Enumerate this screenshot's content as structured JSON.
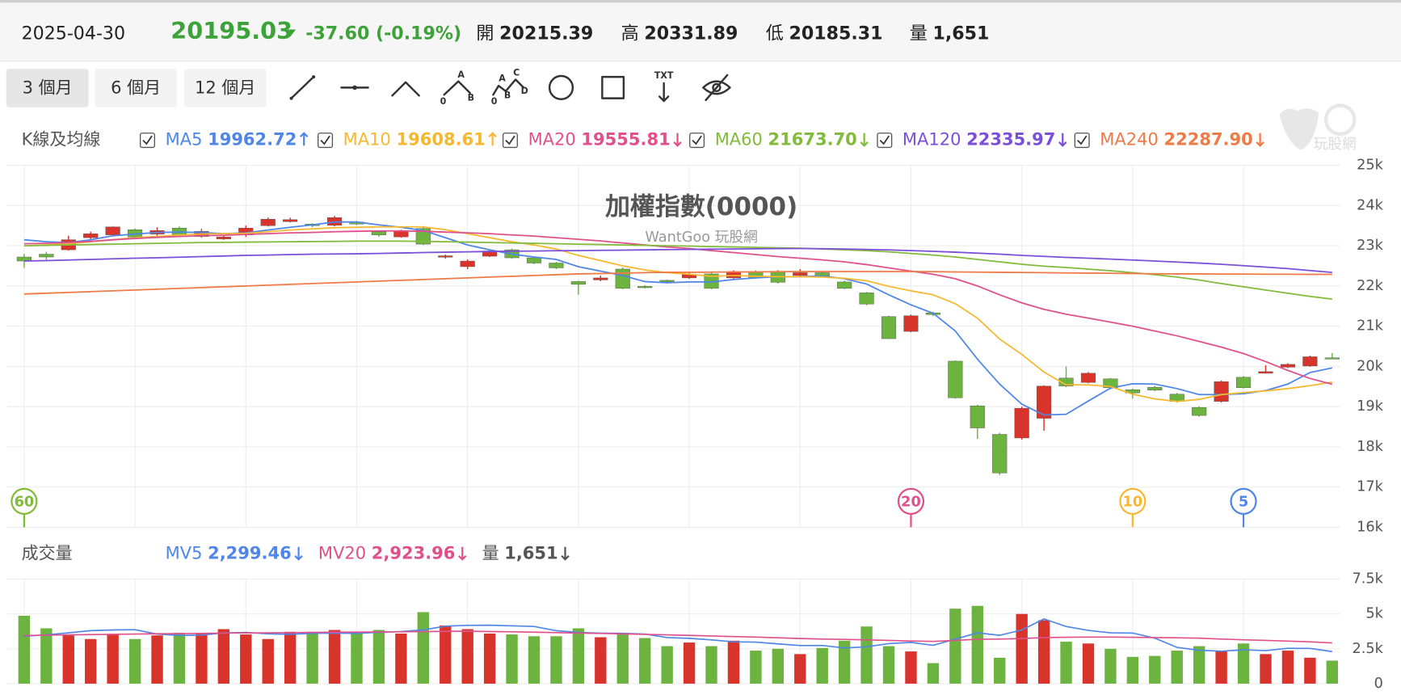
{
  "header": {
    "date": "2025-04-30",
    "price": "20195.03",
    "change": "-37.60 (-0.19%)",
    "color": "#3ea23a",
    "stats": [
      {
        "label": "開",
        "value": "20215.39"
      },
      {
        "label": "高",
        "value": "20331.89"
      },
      {
        "label": "低",
        "value": "20185.31"
      },
      {
        "label": "量",
        "value": "1,651"
      }
    ]
  },
  "toolbar": {
    "ranges": [
      "3 個月",
      "6 個月",
      "12 個月"
    ],
    "active": 0,
    "tool_texts": [
      "A",
      "0",
      "B",
      "A",
      "C",
      "0",
      "B",
      "D",
      "TXT"
    ]
  },
  "logo": "玩股網",
  "chart_data": [
    {
      "type": "candlestick",
      "title": "加權指數(0000)",
      "subtitle": "WantGoo 玩股網",
      "panel_label": "K線及均線",
      "up_color": "#d9342b",
      "down_color": "#6db33f",
      "open": [
        22720,
        22790,
        22900,
        23200,
        23270,
        23400,
        23290,
        23440,
        23230,
        23170,
        23270,
        23500,
        23600,
        23540,
        23510,
        23590,
        23350,
        23220,
        23430,
        22720,
        22480,
        22740,
        22900,
        22700,
        22570,
        22110,
        22150,
        22420,
        21990,
        22140,
        22200,
        22300,
        22200,
        22360,
        22360,
        22260,
        22330,
        22100,
        21830,
        21240,
        20870,
        21330,
        20130,
        19020,
        18310,
        18220,
        18710,
        19710,
        19600,
        19690,
        19420,
        19480,
        19310,
        18980,
        19130,
        19730,
        19830,
        19980,
        20010,
        20215.39
      ],
      "high": [
        22800,
        22850,
        23250,
        23350,
        23480,
        23430,
        23460,
        23480,
        23420,
        23260,
        23500,
        23700,
        23700,
        23560,
        23740,
        23620,
        23380,
        23400,
        23480,
        22780,
        22660,
        22900,
        22930,
        22720,
        22600,
        22130,
        22260,
        22460,
        22020,
        22160,
        22330,
        22330,
        22390,
        22390,
        22400,
        22420,
        22380,
        22130,
        21850,
        21260,
        21290,
        21360,
        20150,
        19050,
        18350,
        19000,
        19530,
        20000,
        19860,
        19710,
        19450,
        19520,
        19340,
        19010,
        19650,
        19760,
        20030,
        20080,
        20270,
        20331.89
      ],
      "low": [
        22450,
        22650,
        22880,
        23150,
        23250,
        23180,
        23250,
        23240,
        23200,
        23150,
        23220,
        23480,
        23580,
        23460,
        23480,
        23510,
        23220,
        23200,
        23020,
        22680,
        22420,
        22720,
        22680,
        22540,
        22420,
        21780,
        22120,
        21920,
        21940,
        22080,
        22180,
        21920,
        22180,
        22180,
        22060,
        22240,
        22230,
        21920,
        21520,
        20680,
        20850,
        21250,
        19200,
        18200,
        17300,
        18180,
        18400,
        19480,
        19580,
        19430,
        19200,
        19380,
        19100,
        18750,
        19100,
        19450,
        19820,
        19960,
        19990,
        20185.31
      ],
      "close": [
        22620,
        22720,
        23150,
        23300,
        23470,
        23220,
        23380,
        23270,
        23360,
        23220,
        23440,
        23660,
        23650,
        23500,
        23700,
        23540,
        23270,
        23370,
        23040,
        22750,
        22620,
        22870,
        22700,
        22570,
        22450,
        22040,
        22200,
        21940,
        21970,
        22100,
        22290,
        21940,
        22360,
        22200,
        22090,
        22330,
        22250,
        21940,
        21550,
        20690,
        21260,
        21290,
        19220,
        18470,
        17350,
        18960,
        19510,
        19510,
        19830,
        19470,
        19340,
        19410,
        19130,
        18780,
        19620,
        19470,
        19870,
        20050,
        20240,
        20195.03
      ],
      "series": [
        {
          "name": "MA5",
          "period": 5,
          "color": "#4f86e8",
          "latest": "19962.72",
          "trend": "up",
          "values": [
            23150,
            23100,
            23080,
            23150,
            23250,
            23290,
            23330,
            23340,
            23330,
            23300,
            23320,
            23390,
            23460,
            23520,
            23590,
            23590,
            23520,
            23460,
            23380,
            23200,
            23020,
            22900,
            22790,
            22720,
            22660,
            22480,
            22370,
            22260,
            22110,
            22080,
            22100,
            22100,
            22160,
            22200,
            22230,
            22230,
            22250,
            22180,
            22050,
            21780,
            21530,
            21320,
            20880,
            20180,
            19560,
            19060,
            18790,
            18810,
            19140,
            19460,
            19570,
            19560,
            19450,
            19300,
            19300,
            19320,
            19400,
            19560,
            19850,
            19962.72
          ]
        },
        {
          "name": "MA10",
          "period": 10,
          "color": "#f5b82e",
          "latest": "19608.61",
          "trend": "up",
          "values": [
            23000,
            23020,
            23050,
            23100,
            23150,
            23200,
            23230,
            23270,
            23290,
            23300,
            23310,
            23350,
            23390,
            23420,
            23450,
            23460,
            23470,
            23470,
            23470,
            23400,
            23300,
            23200,
            23100,
            23020,
            22920,
            22760,
            22630,
            22500,
            22400,
            22330,
            22290,
            22240,
            22260,
            22240,
            22230,
            22230,
            22220,
            22190,
            22130,
            21990,
            21880,
            21780,
            21560,
            21200,
            20680,
            20300,
            19860,
            19540,
            19540,
            19500,
            19310,
            19190,
            19130,
            19180,
            19300,
            19350,
            19390,
            19450,
            19520,
            19608.61
          ]
        },
        {
          "name": "MA20",
          "period": 20,
          "color": "#e0508a",
          "latest": "19555.81",
          "trend": "down",
          "values": [
            23050,
            23060,
            23080,
            23110,
            23150,
            23180,
            23210,
            23230,
            23250,
            23260,
            23280,
            23300,
            23320,
            23330,
            23350,
            23360,
            23370,
            23370,
            23360,
            23340,
            23320,
            23300,
            23270,
            23240,
            23200,
            23160,
            23120,
            23070,
            23020,
            22970,
            22930,
            22880,
            22830,
            22780,
            22730,
            22690,
            22650,
            22600,
            22530,
            22450,
            22370,
            22290,
            22180,
            22000,
            21780,
            21580,
            21420,
            21300,
            21200,
            21100,
            21000,
            20880,
            20760,
            20620,
            20480,
            20320,
            20120,
            19900,
            19700,
            19555.81
          ]
        },
        {
          "name": "MA60",
          "period": 60,
          "color": "#82bb3a",
          "latest": "21673.70",
          "trend": "down",
          "values": [
            23000,
            23010,
            23020,
            23030,
            23040,
            23050,
            23060,
            23070,
            23080,
            23085,
            23090,
            23095,
            23100,
            23105,
            23110,
            23115,
            23115,
            23115,
            23110,
            23100,
            23090,
            23080,
            23070,
            23060,
            23050,
            23040,
            23030,
            23020,
            23010,
            23000,
            22990,
            22980,
            22970,
            22960,
            22950,
            22940,
            22920,
            22900,
            22880,
            22850,
            22810,
            22770,
            22720,
            22660,
            22600,
            22540,
            22490,
            22460,
            22420,
            22380,
            22330,
            22280,
            22220,
            22150,
            22060,
            21980,
            21900,
            21820,
            21740,
            21673.7
          ]
        },
        {
          "name": "MA120",
          "period": 120,
          "color": "#7b4fd9",
          "latest": "22335.97",
          "trend": "down",
          "values": [
            22620,
            22630,
            22645,
            22660,
            22675,
            22690,
            22700,
            22715,
            22730,
            22745,
            22760,
            22770,
            22780,
            22790,
            22795,
            22800,
            22810,
            22820,
            22830,
            22840,
            22850,
            22857,
            22864,
            22870,
            22875,
            22880,
            22886,
            22892,
            22898,
            22904,
            22910,
            22915,
            22920,
            22924,
            22928,
            22930,
            22926,
            22920,
            22910,
            22896,
            22880,
            22862,
            22840,
            22815,
            22790,
            22760,
            22735,
            22710,
            22690,
            22670,
            22645,
            22620,
            22595,
            22570,
            22540,
            22505,
            22470,
            22430,
            22385,
            22335.97
          ]
        },
        {
          "name": "MA240",
          "period": 240,
          "color": "#f07a45",
          "latest": "22287.90",
          "trend": "down",
          "values": [
            21800,
            21820,
            21840,
            21860,
            21880,
            21900,
            21920,
            21940,
            21960,
            21980,
            22000,
            22020,
            22040,
            22060,
            22080,
            22100,
            22120,
            22140,
            22160,
            22180,
            22200,
            22220,
            22240,
            22260,
            22280,
            22300,
            22310,
            22320,
            22330,
            22340,
            22340,
            22345,
            22350,
            22350,
            22355,
            22355,
            22360,
            22360,
            22360,
            22360,
            22360,
            22355,
            22350,
            22345,
            22340,
            22335,
            22330,
            22325,
            22320,
            22315,
            22310,
            22305,
            22300,
            22300,
            22295,
            22295,
            22290,
            22290,
            22288,
            22287.9
          ]
        }
      ],
      "ylim": [
        16000,
        25000
      ],
      "yticks": [
        {
          "value": 25000,
          "label": "25k"
        },
        {
          "value": 24000,
          "label": "24k"
        },
        {
          "value": 23000,
          "label": "23k"
        },
        {
          "value": 22000,
          "label": "22k"
        },
        {
          "value": 21000,
          "label": "21k"
        },
        {
          "value": 20000,
          "label": "20k"
        },
        {
          "value": 19000,
          "label": "19k"
        },
        {
          "value": 18000,
          "label": "18k"
        },
        {
          "value": 17000,
          "label": "17k"
        },
        {
          "value": 16000,
          "label": "16k"
        }
      ],
      "grid": true
    },
    {
      "type": "bar",
      "panel_label": "成交量",
      "volume_trend": "down",
      "values": [
        4870,
        3970,
        3460,
        3200,
        3530,
        3200,
        3460,
        3650,
        3650,
        3910,
        3530,
        3200,
        3720,
        3720,
        3850,
        3590,
        3850,
        3590,
        5130,
        4170,
        3910,
        3590,
        3530,
        3400,
        3400,
        3970,
        3330,
        3590,
        3270,
        2690,
        2950,
        2690,
        3080,
        2370,
        2500,
        2120,
        2560,
        3080,
        4100,
        2690,
        2310,
        1470,
        5380,
        5580,
        1860,
        5000,
        4550,
        3010,
        2880,
        2500,
        1920,
        1990,
        2370,
        2690,
        2370,
        2880,
        2120,
        2370,
        1860,
        1651
      ],
      "series": [
        {
          "name": "MV5",
          "color": "#4f86e8",
          "latest": "2,299.46",
          "trend": "down",
          "values": [
            3400,
            3500,
            3650,
            3800,
            3850,
            3870,
            3550,
            3460,
            3480,
            3640,
            3670,
            3580,
            3540,
            3610,
            3630,
            3600,
            3680,
            3740,
            3850,
            4120,
            4180,
            4190,
            4150,
            4100,
            3800,
            3670,
            3620,
            3610,
            3560,
            3310,
            3250,
            3140,
            3000,
            2980,
            2850,
            2730,
            2740,
            2560,
            2650,
            2870,
            2960,
            2750,
            3200,
            3640,
            3470,
            3850,
            4640,
            4100,
            3820,
            3650,
            3630,
            3260,
            2600,
            2400,
            2330,
            2430,
            2370,
            2540,
            2530,
            2299.46
          ]
        },
        {
          "name": "MV20",
          "color": "#e0508a",
          "latest": "2,923.96",
          "trend": "down",
          "values": [
            3450,
            3480,
            3500,
            3520,
            3540,
            3560,
            3580,
            3590,
            3600,
            3620,
            3640,
            3650,
            3660,
            3670,
            3690,
            3700,
            3710,
            3720,
            3730,
            3750,
            3760,
            3740,
            3720,
            3690,
            3660,
            3630,
            3600,
            3570,
            3540,
            3500,
            3460,
            3420,
            3380,
            3340,
            3290,
            3240,
            3200,
            3170,
            3140,
            3100,
            3060,
            3030,
            3100,
            3180,
            3200,
            3240,
            3300,
            3330,
            3340,
            3340,
            3330,
            3310,
            3290,
            3260,
            3200,
            3150,
            3100,
            3050,
            3000,
            2923.96
          ]
        }
      ],
      "ylim": [
        0,
        7500
      ],
      "yticks": [
        {
          "value": 7500,
          "label": "7.5k"
        },
        {
          "value": 5000,
          "label": "5k"
        },
        {
          "value": 2500,
          "label": "2.5k"
        },
        0
      ],
      "grid": true
    }
  ]
}
